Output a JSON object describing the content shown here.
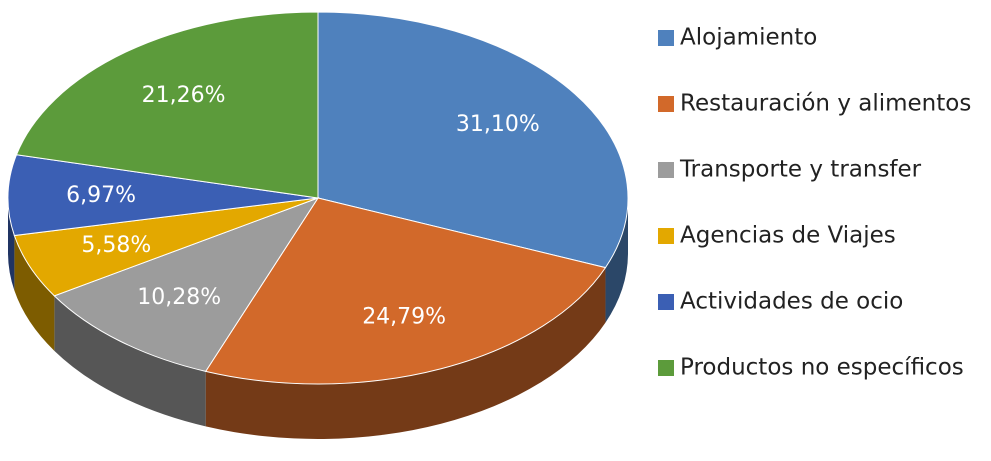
{
  "chart_data": {
    "type": "pie",
    "three_d": true,
    "categories": [
      "Alojamiento",
      "Restauración y alimentos",
      "Transporte y transfer",
      "Agencias de Viajes",
      "Actividades de ocio",
      "Productos no específicos"
    ],
    "values": [
      31.1,
      24.79,
      10.28,
      5.58,
      6.97,
      21.26
    ],
    "value_labels": [
      "31,10%",
      "24,79%",
      "10,28%",
      "5,58%",
      "6,97%",
      "21,26%"
    ],
    "colors": [
      "#4f81bd",
      "#d2692a",
      "#9c9c9c",
      "#e3a800",
      "#3b5fb4",
      "#5c9b3b"
    ],
    "legend": "right"
  }
}
